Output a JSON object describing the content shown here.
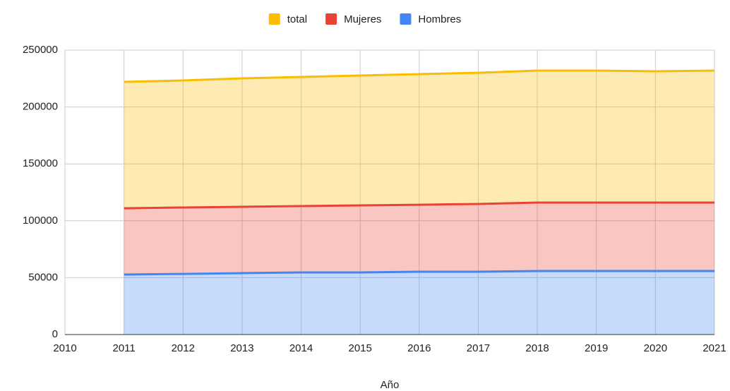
{
  "chart_data": {
    "type": "area",
    "stacked": true,
    "x_label": "Año",
    "x": [
      2011,
      2012,
      2013,
      2014,
      2015,
      2016,
      2017,
      2018,
      2019,
      2020,
      2021
    ],
    "series": [
      {
        "name": "Hombres",
        "color": "#4285f4",
        "values": [
          52700,
          53300,
          54000,
          54600,
          54600,
          55200,
          55200,
          55800,
          55800,
          55800,
          55800
        ]
      },
      {
        "name": "Mujeres",
        "color": "#ea4335",
        "values": [
          58300,
          58400,
          58300,
          58300,
          58900,
          58900,
          59600,
          60200,
          60200,
          60200,
          60200
        ]
      },
      {
        "name": "total",
        "color": "#fbbc04",
        "values": [
          111100,
          111600,
          112900,
          113500,
          114200,
          114800,
          115300,
          116000,
          116000,
          115400,
          116000
        ]
      }
    ],
    "legend_order": [
      "total",
      "Mujeres",
      "Hombres"
    ],
    "xlim": [
      2010,
      2021
    ],
    "xticks": [
      2010,
      2011,
      2012,
      2013,
      2014,
      2015,
      2016,
      2017,
      2018,
      2019,
      2020,
      2021
    ],
    "ylim": [
      0,
      250000
    ],
    "yticks": [
      0,
      50000,
      100000,
      150000,
      200000,
      250000
    ],
    "grid": true,
    "legend": "top"
  }
}
